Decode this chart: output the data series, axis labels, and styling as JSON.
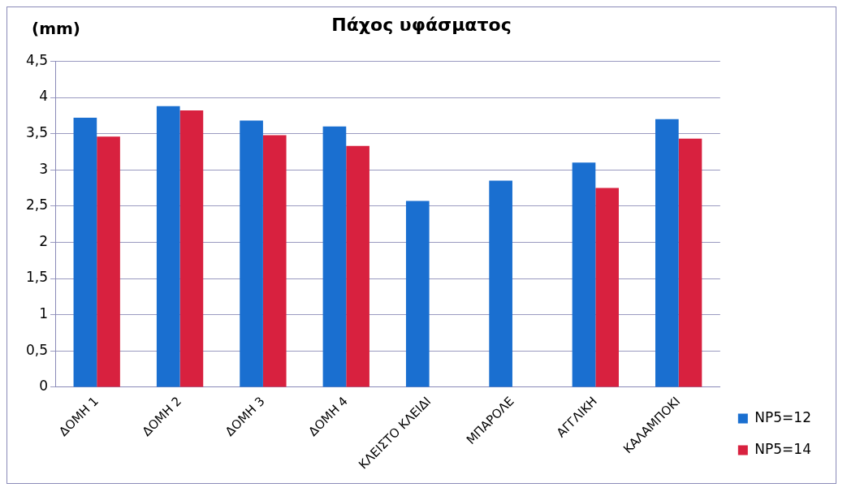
{
  "chart_data": {
    "type": "bar",
    "title": "Πάχος υφάσματος",
    "ylabel": "(mm)",
    "categories": [
      "ΔΟΜΗ 1",
      "ΔΟΜΗ 2",
      "ΔΟΜΗ 3",
      "ΔΟΜΗ 4",
      "ΚΛΕΙΣΤΟ ΚΛΕΙΔΙ",
      "ΜΠΑΡΟΛΕ",
      "ΑΓΓΛΙΚΗ",
      "ΚΑΛΑΜΠΟΚΙ"
    ],
    "series": [
      {
        "name": "NP5=12",
        "color": "#1a6fd0",
        "values": [
          3.72,
          3.88,
          3.68,
          3.6,
          2.57,
          2.85,
          3.1,
          3.7
        ]
      },
      {
        "name": "NP5=14",
        "color": "#d8213f",
        "values": [
          3.46,
          3.82,
          3.48,
          3.33,
          null,
          null,
          2.75,
          3.43
        ]
      }
    ],
    "ylim": [
      0,
      4.5
    ],
    "yticks": [
      0,
      {
        "value": 0.5,
        "label": "0,5"
      },
      1,
      {
        "value": 1.5,
        "label": "1,5"
      },
      2,
      {
        "value": 2.5,
        "label": "2,5"
      },
      3,
      {
        "value": 3.5,
        "label": "3,5"
      },
      4,
      {
        "value": 4.5,
        "label": "4,5"
      }
    ],
    "grid": "y",
    "legend": "bottom right"
  }
}
